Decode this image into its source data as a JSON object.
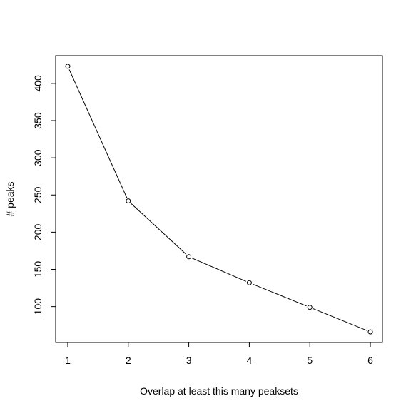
{
  "chart_data": {
    "type": "line",
    "title": "",
    "xlabel": "Overlap at least this many peaksets",
    "ylabel": "# peaks",
    "x": [
      1,
      2,
      3,
      4,
      5,
      6
    ],
    "series": [
      {
        "values": [
          423,
          242,
          167,
          132,
          99,
          66
        ]
      }
    ],
    "xticks": [
      1,
      2,
      3,
      4,
      5,
      6
    ],
    "xtick_labels": [
      "1",
      "2",
      "3",
      "4",
      "5",
      "6"
    ],
    "yticks": [
      100,
      150,
      200,
      250,
      300,
      350,
      400
    ],
    "ytick_labels": [
      "100",
      "150",
      "200",
      "250",
      "300",
      "350",
      "400"
    ],
    "xlim": [
      0.8,
      6.2
    ],
    "ylim": [
      51.7,
      437.3
    ],
    "grid": false,
    "marker": "open-circle",
    "line_color": "#000000"
  }
}
